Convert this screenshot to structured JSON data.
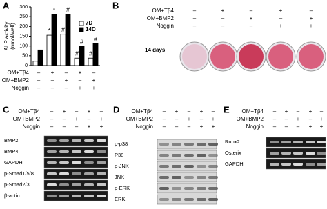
{
  "chart_data": {
    "type": "bar",
    "panel_label": "A",
    "y_label_lines": [
      "ALP activity",
      "(nmol/well)"
    ],
    "categories": [
      null,
      null,
      null,
      null,
      null
    ],
    "series": [
      {
        "name": "7D",
        "color": "#ffffff",
        "values": [
          22,
          155,
          160,
          38,
          38
        ]
      },
      {
        "name": "14D",
        "color": "#000000",
        "values": [
          80,
          262,
          262,
          98,
          112
        ]
      }
    ],
    "ylim": [
      0,
      300
    ],
    "yticks": [
      0,
      50,
      100,
      150,
      200,
      250,
      300
    ],
    "legend": "upper right",
    "annotations": [
      {
        "series": 0,
        "index": 1,
        "text": "*"
      },
      {
        "series": 1,
        "index": 1,
        "text": "*"
      },
      {
        "series": 0,
        "index": 2,
        "text": "#"
      },
      {
        "series": 1,
        "index": 2,
        "text": "#"
      },
      {
        "series": 0,
        "index": 3,
        "text": "#"
      },
      {
        "series": 1,
        "index": 3,
        "text": "#"
      },
      {
        "series": 0,
        "index": 4,
        "text": "#"
      },
      {
        "series": 1,
        "index": 4,
        "text": "#"
      }
    ],
    "conditions": [
      {
        "label": "OM+Tβ4",
        "signs": [
          "–",
          "+",
          "–",
          "+",
          "–"
        ]
      },
      {
        "label": "OM+BMP2",
        "signs": [
          "–",
          "–",
          "+",
          "–",
          "+"
        ]
      },
      {
        "label": "Noggin",
        "signs": [
          "–",
          "–",
          "–",
          "+",
          "+"
        ]
      }
    ]
  },
  "panels": [
    {
      "label": "B",
      "note": "14 days",
      "conditions": [
        {
          "label": "OM+Tβ4",
          "signs": [
            "–",
            "+",
            "–",
            "+",
            "–"
          ]
        },
        {
          "label": "OM+BMP2",
          "signs": [
            "–",
            "–",
            "+",
            "–",
            "+"
          ]
        },
        {
          "label": "Noggin",
          "signs": [
            "–",
            "–",
            "–",
            "+",
            "+"
          ]
        }
      ]
    },
    {
      "label": "C",
      "conditions": [
        {
          "label": "OM+Tβ4",
          "signs": [
            "–",
            "+",
            "–",
            "+",
            "–"
          ]
        },
        {
          "label": "OM+BMP2",
          "signs": [
            "–",
            "–",
            "+",
            "–",
            "+"
          ]
        },
        {
          "label": "Noggin",
          "signs": [
            "–",
            "–",
            "–",
            "+",
            "+"
          ]
        }
      ],
      "blots": [
        "BMP2",
        "BMP4",
        "GAPDH",
        "p-Smad1/5/8",
        "p-Smad2/3",
        "β-actin"
      ]
    },
    {
      "label": "D",
      "conditions": [
        {
          "label": "OM+Tβ4",
          "signs": [
            "–",
            "+",
            "–",
            "+",
            "–"
          ]
        },
        {
          "label": "OM+BMP2",
          "signs": [
            "–",
            "–",
            "+",
            "–",
            "+"
          ]
        },
        {
          "label": "Noggin",
          "signs": [
            "–",
            "–",
            "–",
            "+",
            "+"
          ]
        }
      ],
      "blots": [
        "p-p38",
        "P38",
        "p-JNK",
        "JNK",
        "p-ERK",
        "ERK"
      ]
    },
    {
      "label": "E",
      "conditions": [
        {
          "label": "OM+Tβ4",
          "signs": [
            "–",
            "+",
            "–",
            "+",
            "–"
          ]
        },
        {
          "label": "OM+BMP2",
          "signs": [
            "–",
            "–",
            "+",
            "–",
            "+"
          ]
        },
        {
          "label": "Noggin",
          "signs": [
            "–",
            "–",
            "–",
            "+",
            "+"
          ]
        }
      ],
      "blots": [
        "Runx2",
        "Osterix",
        "GAPDH"
      ]
    }
  ]
}
